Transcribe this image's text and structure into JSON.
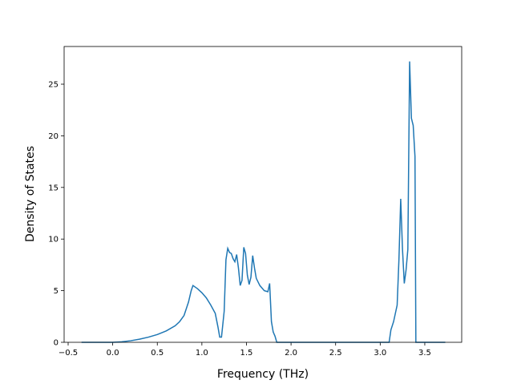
{
  "chart_data": {
    "type": "line",
    "x_label": "Frequency (THz)",
    "y_label": "Density of States",
    "x": [
      -0.35,
      0.0,
      0.1,
      0.2,
      0.3,
      0.4,
      0.5,
      0.6,
      0.7,
      0.75,
      0.8,
      0.85,
      0.88,
      0.9,
      0.95,
      1.0,
      1.05,
      1.1,
      1.15,
      1.18,
      1.2,
      1.22,
      1.25,
      1.27,
      1.29,
      1.31,
      1.33,
      1.35,
      1.37,
      1.39,
      1.41,
      1.43,
      1.45,
      1.47,
      1.49,
      1.51,
      1.53,
      1.55,
      1.57,
      1.59,
      1.61,
      1.65,
      1.7,
      1.74,
      1.76,
      1.78,
      1.8,
      1.82,
      1.84,
      3.1,
      3.12,
      3.15,
      3.19,
      3.21,
      3.23,
      3.25,
      3.27,
      3.29,
      3.31,
      3.33,
      3.35,
      3.37,
      3.39,
      3.4,
      3.73
    ],
    "series": [
      {
        "color": "#1f77b4",
        "values": [
          0,
          0,
          0.05,
          0.15,
          0.3,
          0.5,
          0.75,
          1.1,
          1.6,
          2.0,
          2.6,
          3.9,
          5.0,
          5.5,
          5.2,
          4.8,
          4.3,
          3.6,
          2.8,
          1.5,
          0.5,
          0.5,
          3.0,
          8.0,
          9.1,
          8.7,
          8.6,
          8.1,
          7.8,
          8.5,
          7.2,
          5.5,
          6.0,
          9.2,
          8.6,
          6.5,
          5.6,
          6.3,
          8.4,
          7.2,
          6.2,
          5.5,
          5.0,
          4.9,
          5.7,
          2.0,
          1.0,
          0.6,
          0,
          0,
          1.2,
          2.0,
          3.6,
          8.0,
          13.9,
          9.0,
          5.7,
          7.0,
          9.0,
          27.2,
          21.7,
          21.0,
          18.0,
          0,
          0
        ]
      }
    ],
    "xlim": [
      -0.545,
      3.914
    ],
    "ylim": [
      0,
      28.65
    ],
    "xticks": [
      {
        "value": -0.5,
        "label": "−0.5"
      },
      {
        "value": 0,
        "label": "0.0"
      },
      0.5,
      {
        "value": 1,
        "label": "1.0"
      },
      1.5,
      {
        "value": 2,
        "label": "2.0"
      },
      2.5,
      {
        "value": 3,
        "label": "3.0"
      },
      3.5
    ],
    "yticks": [
      0,
      5,
      10,
      15,
      20,
      25
    ]
  }
}
